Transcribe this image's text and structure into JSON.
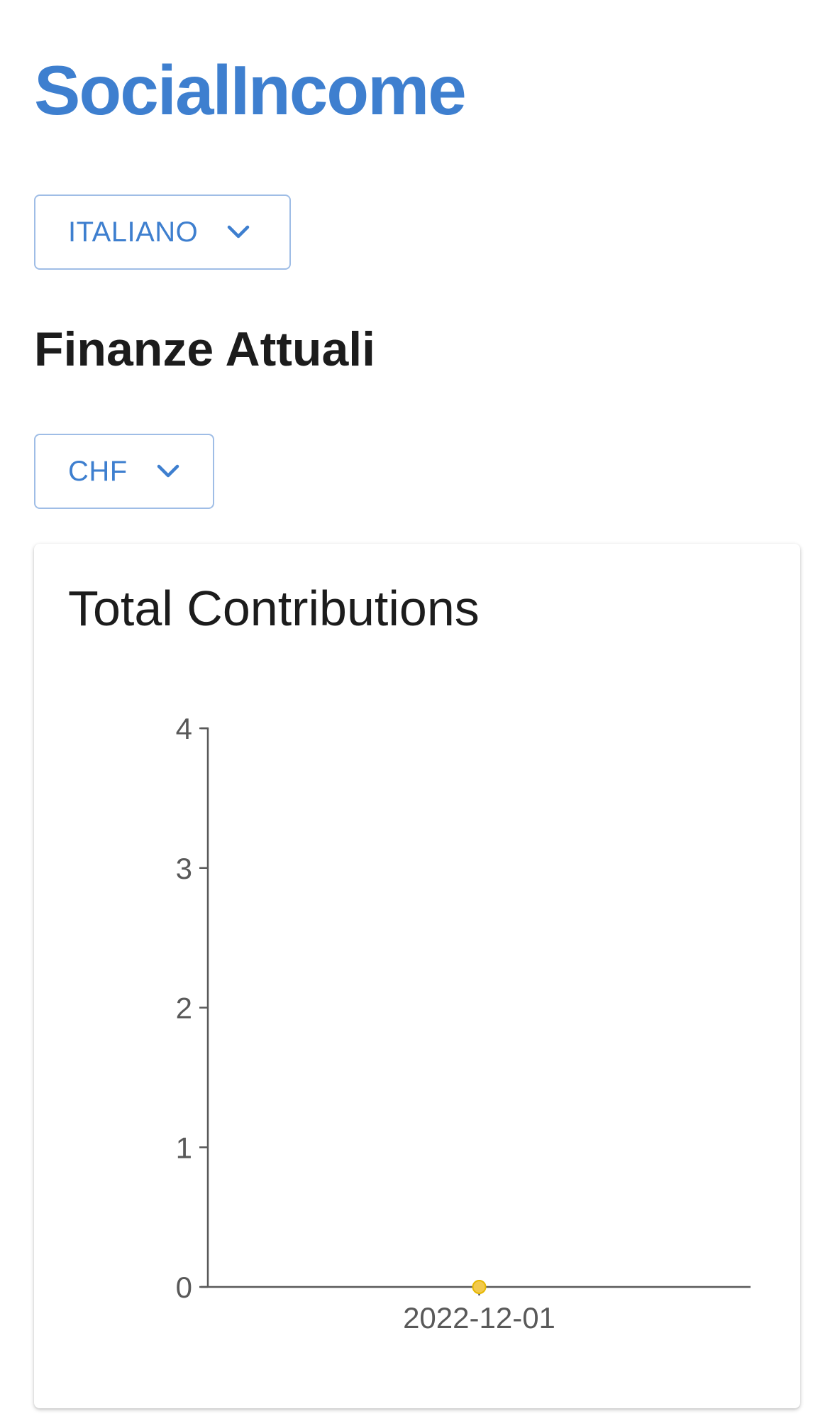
{
  "header": {
    "brand": "SocialIncome"
  },
  "language_selector": {
    "label": "ITALIANO",
    "icon": "chevron-down-icon"
  },
  "section": {
    "title": "Finanze Attuali"
  },
  "currency_selector": {
    "label": "CHF",
    "icon": "chevron-down-icon"
  },
  "colors": {
    "accent": "#3e7fcf",
    "point": "#f2c94c",
    "axis": "#595959"
  },
  "chart_data": {
    "type": "line",
    "title": "Total Contributions",
    "xlabel": "",
    "ylabel": "",
    "categories": [
      "2022-12-01"
    ],
    "series": [
      {
        "values": [
          0
        ]
      }
    ],
    "yticks": [
      "0",
      "1",
      "2",
      "3",
      "4"
    ],
    "ylim": [
      0,
      4
    ],
    "grid": false,
    "legend": "none"
  }
}
